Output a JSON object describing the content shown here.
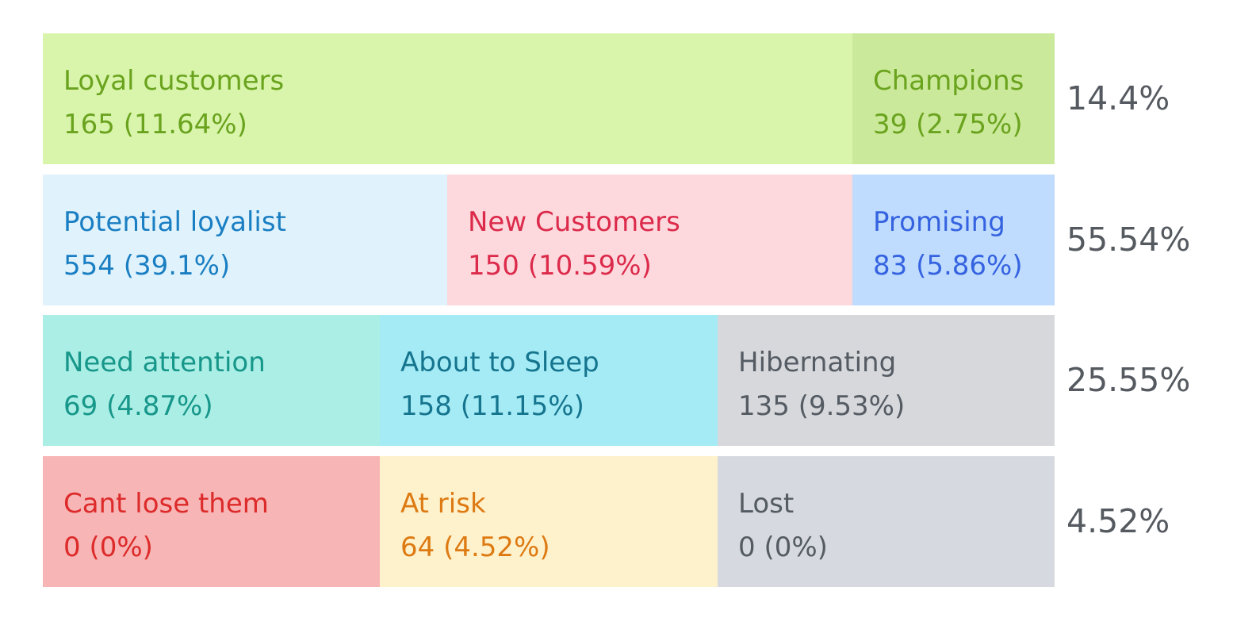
{
  "rows": [
    {
      "total": "14.4%",
      "cells": [
        {
          "label": "Loyal customers",
          "detail": "165 (11.64%)",
          "background": "#d9f5ab",
          "color": "#6aa31e"
        },
        {
          "label": "Champions",
          "detail": "39 (2.75%)",
          "background": "#cbe99a",
          "color": "#6aa31e"
        }
      ]
    },
    {
      "total": "55.54%",
      "cells": [
        {
          "label": "Potential loyalist",
          "detail": "554 (39.1%)",
          "background": "#e0f3fd",
          "color": "#1a7ec2"
        },
        {
          "label": "New Customers",
          "detail": "150 (10.59%)",
          "background": "#fdd9de",
          "color": "#dc2a4a"
        },
        {
          "label": "Promising",
          "detail": "83 (5.86%)",
          "background": "#bfdcfe",
          "color": "#3563e0"
        }
      ]
    },
    {
      "total": "25.55%",
      "cells": [
        {
          "label": "Need attention",
          "detail": "69 (4.87%)",
          "background": "#aaeee5",
          "color": "#17968a"
        },
        {
          "label": "About to Sleep",
          "detail": "158 (11.15%)",
          "background": "#a5ebf5",
          "color": "#15758e"
        },
        {
          "label": "Hibernating",
          "detail": "135 (9.53%)",
          "background": "#d6d8dc",
          "color": "#555b63"
        }
      ]
    },
    {
      "total": "4.52%",
      "cells": [
        {
          "label": "Cant lose them",
          "detail": "0 (0%)",
          "background": "#f7b5b5",
          "color": "#dd2a2a"
        },
        {
          "label": "At risk",
          "detail": "64 (4.52%)",
          "background": "#fef2cd",
          "color": "#dd7a12"
        },
        {
          "label": "Lost",
          "detail": "0 (0%)",
          "background": "#d6dae0",
          "color": "#555b63"
        }
      ]
    }
  ]
}
